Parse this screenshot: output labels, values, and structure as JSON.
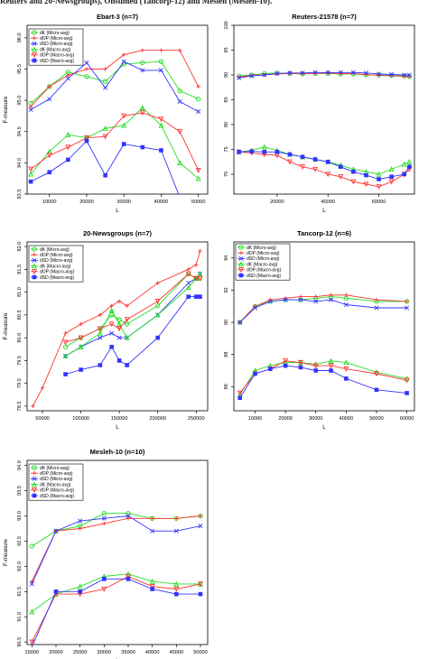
{
  "caption": "Reuters and 20-Newsgroups), Ohsumed (Tancorp-12) and Mesleh (Mesleh-10).",
  "chart_data": [
    {
      "id": "ebart",
      "type": "line",
      "title": "Ebart-3 (n=7)",
      "xlabel": "L",
      "ylabel": "F-measure",
      "xlim": [
        4000,
        52500
      ],
      "ylim": [
        93.5,
        96.2
      ],
      "xticks": [
        10000,
        20000,
        30000,
        40000,
        50000
      ],
      "xtick_labels": [
        "10000",
        "20000",
        "30000",
        "40000",
        "50000"
      ],
      "yticks": [
        93.5,
        94.0,
        94.5,
        95.0,
        95.5,
        96.0
      ],
      "ytick_labels": [
        "93.5",
        "94.0",
        "94.5",
        "95.0",
        "95.5",
        "96.0"
      ],
      "legend": [
        "dK (Micro-avg)",
        "dOP (Micro-avg)",
        "dSD (Micro-avg)",
        "dK (Macro-avg)",
        "dOP (Macro-avg)",
        "dSD (Macro-avg)"
      ],
      "x": [
        5000,
        10000,
        15000,
        20000,
        25000,
        30000,
        35000,
        40000,
        45000,
        50000
      ],
      "series": [
        {
          "name": "dK (Micro-avg)",
          "color": "#22dd22",
          "marker": "circle",
          "values": [
            94.95,
            95.22,
            95.45,
            95.38,
            95.3,
            95.58,
            95.6,
            95.62,
            95.15,
            95.02
          ]
        },
        {
          "name": "dOP (Micro-avg)",
          "color": "#ff3333",
          "marker": "plus",
          "values": [
            94.9,
            95.22,
            95.4,
            95.5,
            95.5,
            95.73,
            95.8,
            95.8,
            95.8,
            95.22
          ]
        },
        {
          "name": "dSD (Micro-avg)",
          "color": "#3333ff",
          "marker": "cross",
          "values": [
            94.85,
            95.02,
            95.35,
            95.6,
            95.2,
            95.62,
            95.48,
            95.48,
            94.98,
            94.82
          ]
        },
        {
          "name": "dK (Macro-avg)",
          "color": "#22dd22",
          "marker": "triangle",
          "values": [
            93.82,
            94.18,
            94.45,
            94.4,
            94.55,
            94.6,
            94.88,
            94.6,
            94.0,
            93.75
          ]
        },
        {
          "name": "dOP (Macro-avg)",
          "color": "#ff3333",
          "marker": "triangle-down",
          "values": [
            93.9,
            94.12,
            94.25,
            94.4,
            94.42,
            94.75,
            94.8,
            94.7,
            94.5,
            93.88
          ]
        },
        {
          "name": "dSD (Macro-avg)",
          "color": "#3333ff",
          "marker": "square",
          "values": [
            93.7,
            93.85,
            94.05,
            94.35,
            93.8,
            94.3,
            94.25,
            94.2,
            93.45,
            93.32
          ]
        }
      ]
    },
    {
      "id": "reuters",
      "type": "line",
      "title": "Reuters-21578 (n=7)",
      "xlabel": "L",
      "ylabel": "",
      "xlim": [
        3000,
        74000
      ],
      "ylim": [
        66,
        100
      ],
      "xticks": [
        20000,
        40000,
        60000
      ],
      "xtick_labels": [
        "20000",
        "40000",
        "60000"
      ],
      "yticks": [
        70,
        75,
        80,
        85,
        90,
        95,
        100
      ],
      "ytick_labels": [
        "70",
        "75",
        "80",
        "85",
        "90",
        "95",
        "100"
      ],
      "x": [
        5000,
        10000,
        15000,
        20000,
        25000,
        30000,
        35000,
        40000,
        45000,
        50000,
        55000,
        60000,
        65000,
        70000,
        72000
      ],
      "series": [
        {
          "name": "dK (Micro-avg)",
          "color": "#22dd22",
          "marker": "circle",
          "values": [
            89.8,
            90.0,
            90.3,
            90.4,
            90.3,
            90.2,
            90.3,
            90.3,
            90.2,
            90.2,
            90.0,
            90.0,
            89.9,
            89.8,
            89.7
          ]
        },
        {
          "name": "dOP (Micro-avg)",
          "color": "#ff3333",
          "marker": "plus",
          "values": [
            89.6,
            89.9,
            90.0,
            90.2,
            90.3,
            90.3,
            90.3,
            90.4,
            90.3,
            90.3,
            90.1,
            89.9,
            89.8,
            89.7,
            89.6
          ]
        },
        {
          "name": "dSD (Micro-avg)",
          "color": "#3333ff",
          "marker": "cross",
          "values": [
            89.4,
            89.8,
            90.0,
            90.3,
            90.4,
            90.4,
            90.5,
            90.5,
            90.5,
            90.5,
            90.4,
            90.2,
            90.1,
            90.0,
            90.0
          ]
        },
        {
          "name": "dK (Macro-avg)",
          "color": "#22dd22",
          "marker": "triangle",
          "values": [
            74.5,
            74.8,
            75.5,
            74.8,
            74.0,
            73.5,
            73.0,
            72.5,
            71.8,
            71.0,
            70.5,
            70.0,
            71.0,
            72.0,
            72.5
          ]
        },
        {
          "name": "dOP (Macro-avg)",
          "color": "#ff3333",
          "marker": "triangle-down",
          "values": [
            74.5,
            74.3,
            74.0,
            73.8,
            72.5,
            71.5,
            71.0,
            70.0,
            69.5,
            68.5,
            68.0,
            67.5,
            68.5,
            70.0,
            71.0
          ]
        },
        {
          "name": "dSD (Macro-avg)",
          "color": "#3333ff",
          "marker": "square",
          "values": [
            74.5,
            74.6,
            74.5,
            74.5,
            74.0,
            73.5,
            73.0,
            72.5,
            71.5,
            70.5,
            69.8,
            69.0,
            69.5,
            70.0,
            71.5
          ]
        }
      ]
    },
    {
      "id": "newsgroups",
      "type": "line",
      "title": "20-Newsgroups (n=7)",
      "xlabel": "L",
      "ylabel": "F-measure",
      "xlim": [
        30000,
        265000
      ],
      "ylim": [
        78.4,
        82.1
      ],
      "xticks": [
        50000,
        100000,
        150000,
        200000,
        250000
      ],
      "xtick_labels": [
        "50000",
        "100000",
        "150000",
        "200000",
        "250000"
      ],
      "yticks": [
        78.5,
        79.0,
        79.5,
        80.0,
        80.5,
        81.0,
        81.5,
        82.0
      ],
      "ytick_labels": [
        "78.5",
        "79.0",
        "79.5",
        "80.0",
        "80.5",
        "81.0",
        "81.5",
        "82.0"
      ],
      "legend": [
        "dK (Micro-avg)",
        "dOP (Micro-avg)",
        "dSD (Micro-avg)",
        "dK (Macro-avg)",
        "dOP (Macro-avg)",
        "dSD (Macro-avg)"
      ],
      "x": [
        37500,
        50000,
        80000,
        100000,
        125000,
        140000,
        150000,
        160000,
        200000,
        240000,
        250000,
        255000
      ],
      "series": [
        {
          "name": "dK (Micro-avg)",
          "color": "#22dd22",
          "marker": "circle",
          "values": [
            null,
            null,
            79.8,
            80.0,
            80.2,
            80.5,
            80.4,
            80.3,
            80.7,
            81.4,
            81.3,
            81.3
          ]
        },
        {
          "name": "dOP (Micro-avg)",
          "color": "#ff3333",
          "marker": "plus",
          "values": [
            78.5,
            78.9,
            80.1,
            80.3,
            80.5,
            80.7,
            80.8,
            80.7,
            81.2,
            81.5,
            81.6,
            81.9
          ]
        },
        {
          "name": "dSD (Micro-avg)",
          "color": "#3333ff",
          "marker": "cross",
          "values": [
            null,
            null,
            79.6,
            79.8,
            80.0,
            80.1,
            80.0,
            80.0,
            80.5,
            81.2,
            81.3,
            81.4
          ]
        },
        {
          "name": "dK (Macro-avg)",
          "color": "#22dd22",
          "marker": "triangle",
          "values": [
            null,
            null,
            79.6,
            79.8,
            80.1,
            80.6,
            80.3,
            80.0,
            80.5,
            81.1,
            81.3,
            81.4
          ]
        },
        {
          "name": "dOP (Macro-avg)",
          "color": "#ff3333",
          "marker": "triangle-down",
          "values": [
            null,
            null,
            79.9,
            80.0,
            80.2,
            80.3,
            80.2,
            80.4,
            80.8,
            81.4,
            81.3,
            81.3
          ]
        },
        {
          "name": "dSD (Macro-avg)",
          "color": "#3333ff",
          "marker": "square",
          "values": [
            null,
            null,
            79.2,
            79.3,
            79.4,
            79.8,
            79.5,
            79.4,
            80.0,
            80.9,
            80.9,
            80.9
          ]
        }
      ]
    },
    {
      "id": "tancorp",
      "type": "line",
      "title": "Tancorp-12 (n=6)",
      "xlabel": "L",
      "ylabel": "",
      "xlim": [
        3000,
        62500
      ],
      "ylim": [
        84.5,
        95
      ],
      "xticks": [
        10000,
        20000,
        30000,
        40000,
        50000,
        60000
      ],
      "xtick_labels": [
        "10000",
        "20000",
        "30000",
        "40000",
        "50000",
        "60000"
      ],
      "yticks": [
        86,
        88,
        90,
        92,
        94
      ],
      "ytick_labels": [
        "86",
        "88",
        "90",
        "92",
        "94"
      ],
      "legend": [
        "dK (Micro-avg)",
        "dOP (Micro-avg)",
        "dSD (Micro-avg)",
        "dK (Macro-avg)",
        "dOP (Macro-avg)",
        "dSD (Macro-avg)"
      ],
      "x": [
        5000,
        10000,
        15000,
        20000,
        25000,
        30000,
        35000,
        40000,
        50000,
        60000
      ],
      "series": [
        {
          "name": "dK (Micro-avg)",
          "color": "#22dd22",
          "marker": "circle",
          "values": [
            90.0,
            91.0,
            91.3,
            91.4,
            91.4,
            91.5,
            91.6,
            91.5,
            91.3,
            91.3
          ]
        },
        {
          "name": "dOP (Micro-avg)",
          "color": "#ff3333",
          "marker": "plus",
          "values": [
            90.0,
            91.0,
            91.4,
            91.5,
            91.6,
            91.6,
            91.7,
            91.7,
            91.4,
            91.3
          ]
        },
        {
          "name": "dSD (Micro-avg)",
          "color": "#3333ff",
          "marker": "cross",
          "values": [
            90.0,
            90.9,
            91.3,
            91.4,
            91.4,
            91.3,
            91.4,
            91.1,
            90.9,
            90.9
          ]
        },
        {
          "name": "dK (Macro-avg)",
          "color": "#22dd22",
          "marker": "triangle",
          "values": [
            85.5,
            87.0,
            87.3,
            87.5,
            87.5,
            87.4,
            87.6,
            87.5,
            86.9,
            86.5
          ]
        },
        {
          "name": "dOP (Macro-avg)",
          "color": "#ff3333",
          "marker": "triangle-down",
          "values": [
            85.6,
            86.8,
            87.1,
            87.6,
            87.5,
            87.3,
            87.3,
            87.1,
            86.8,
            86.4
          ]
        },
        {
          "name": "dSD (Macro-avg)",
          "color": "#3333ff",
          "marker": "square",
          "values": [
            85.3,
            86.8,
            87.1,
            87.3,
            87.2,
            87.0,
            87.0,
            86.5,
            85.8,
            85.6
          ]
        }
      ]
    },
    {
      "id": "mesleh",
      "type": "line",
      "title": "Mesleh-10 (n=10)",
      "xlabel": "L",
      "ylabel": "F-measure",
      "xlim": [
        14000,
        51500
      ],
      "ylim": [
        90.45,
        94.1
      ],
      "xticks": [
        15000,
        20000,
        25000,
        30000,
        35000,
        40000,
        45000,
        50000
      ],
      "xtick_labels": [
        "15000",
        "20000",
        "25000",
        "30000",
        "35000",
        "40000",
        "45000",
        "50000"
      ],
      "yticks": [
        90.5,
        91.0,
        91.5,
        92.0,
        92.5,
        93.0,
        93.5,
        94.0
      ],
      "ytick_labels": [
        "90.5",
        "91.0",
        "91.5",
        "92.0",
        "92.5",
        "93.0",
        "93.5",
        "94.0"
      ],
      "legend": [
        "dK (Micro-avg)",
        "dOP (Micro-avg)",
        "dSD (Micro-avg)",
        "dK (Macro-avg)",
        "dOP (Macro-avg)",
        "dSD (Macro-avg)"
      ],
      "x": [
        15000,
        20000,
        25000,
        30000,
        35000,
        40000,
        45000,
        50000
      ],
      "series": [
        {
          "name": "dK (Micro-avg)",
          "color": "#22dd22",
          "marker": "circle",
          "values": [
            92.4,
            92.7,
            92.8,
            93.05,
            93.05,
            92.95,
            92.95,
            93.0
          ]
        },
        {
          "name": "dOP (Micro-avg)",
          "color": "#ff3333",
          "marker": "plus",
          "values": [
            91.7,
            92.7,
            92.75,
            92.85,
            92.95,
            92.95,
            92.95,
            93.0
          ]
        },
        {
          "name": "dSD (Micro-avg)",
          "color": "#3333ff",
          "marker": "cross",
          "values": [
            91.65,
            92.7,
            92.9,
            92.95,
            93.0,
            92.7,
            92.7,
            92.8
          ]
        },
        {
          "name": "dK (Macro-avg)",
          "color": "#22dd22",
          "marker": "triangle",
          "values": [
            91.1,
            91.45,
            91.6,
            91.8,
            91.85,
            91.7,
            91.65,
            91.65
          ]
        },
        {
          "name": "dOP (Macro-avg)",
          "color": "#ff3333",
          "marker": "triangle-down",
          "values": [
            90.5,
            91.45,
            91.45,
            91.55,
            91.8,
            91.6,
            91.55,
            91.65
          ]
        },
        {
          "name": "dSD (Macro-avg)",
          "color": "#3333ff",
          "marker": "square",
          "values": [
            90.4,
            91.5,
            91.5,
            91.75,
            91.75,
            91.55,
            91.45,
            91.45
          ]
        }
      ]
    }
  ]
}
